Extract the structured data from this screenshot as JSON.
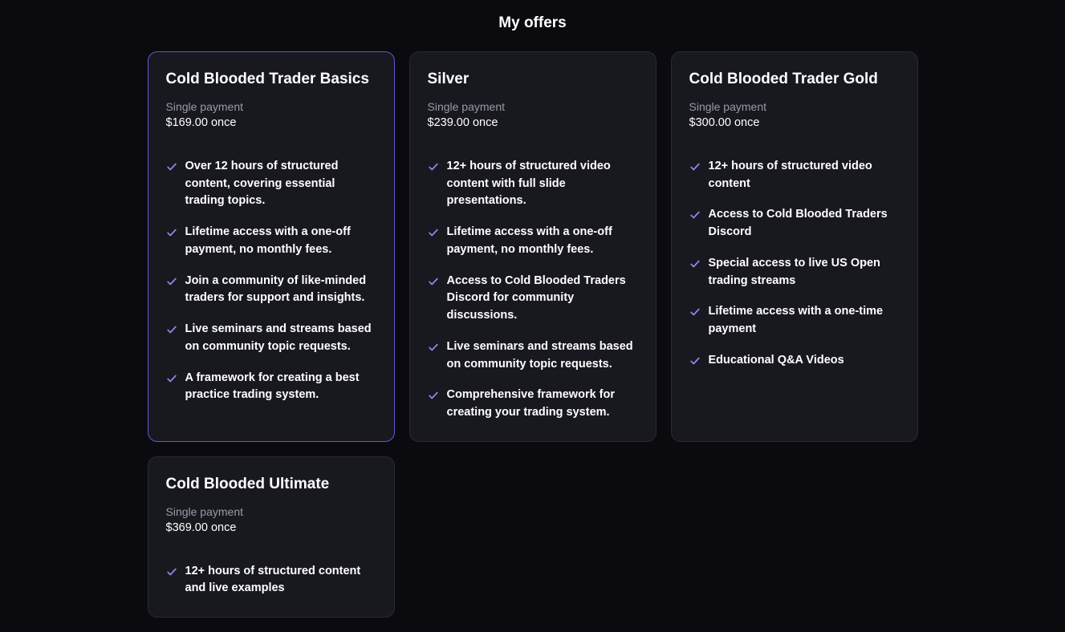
{
  "page_title": "My offers",
  "colors": {
    "bg": "#0a0a0f",
    "card_bg": "#18181f",
    "card_border": "#2a2a33",
    "selected_border": "#5b5bd6",
    "check": "#8a8af0",
    "muted_text": "#9b9ba8",
    "text": "#ffffff"
  },
  "offers": [
    {
      "id": "basics",
      "selected": true,
      "title": "Cold Blooded Trader Basics",
      "payment_type": "Single payment",
      "price": "$169.00 once",
      "features": [
        "Over 12 hours of structured content, covering essential trading topics.",
        "Lifetime access with a one-off payment, no monthly fees.",
        "Join a community of like-minded traders for support and insights.",
        "Live seminars and streams based on community topic requests.",
        "A framework for creating a best practice trading system."
      ]
    },
    {
      "id": "silver",
      "selected": false,
      "title": "Silver",
      "payment_type": "Single payment",
      "price": "$239.00 once",
      "features": [
        "12+ hours of structured video content with full slide presentations.",
        "Lifetime access with a one-off payment, no monthly fees.",
        "Access to Cold Blooded Traders Discord for community discussions.",
        "Live seminars and streams based on community topic requests.",
        "Comprehensive framework for creating your trading system."
      ]
    },
    {
      "id": "gold",
      "selected": false,
      "title": "Cold Blooded Trader Gold",
      "payment_type": "Single payment",
      "price": "$300.00 once",
      "features": [
        "12+ hours of structured video content",
        "Access to Cold Blooded Traders Discord",
        "Special access to live US Open trading streams",
        "Lifetime access with a one-time payment",
        "Educational Q&A Videos"
      ]
    },
    {
      "id": "ultimate",
      "selected": false,
      "title": "Cold Blooded Ultimate",
      "payment_type": "Single payment",
      "price": "$369.00 once",
      "features": [
        "12+ hours of structured content and live examples"
      ]
    }
  ]
}
